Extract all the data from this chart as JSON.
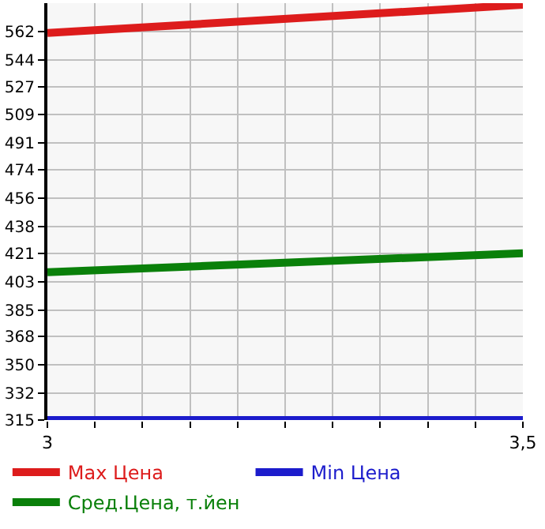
{
  "chart_data": {
    "type": "line",
    "x": [
      3,
      3.5
    ],
    "series": [
      {
        "name": "Max Цена",
        "color": "#dd1c1c",
        "values": [
          561,
          579
        ]
      },
      {
        "name": "Min Цена",
        "color": "#1c1ccc",
        "values": [
          315,
          315
        ]
      },
      {
        "name": "Сред.Цена, т.йен",
        "color": "#0a800a",
        "values": [
          409,
          421
        ]
      }
    ],
    "xlim": [
      3,
      3.5
    ],
    "xticks": [
      3,
      {
        "value": 3.05,
        "label": null
      },
      {
        "value": 3.1,
        "label": null
      },
      {
        "value": 3.15,
        "label": null
      },
      {
        "value": 3.2,
        "label": null
      },
      {
        "value": 3.25,
        "label": null
      },
      {
        "value": 3.3,
        "label": null
      },
      {
        "value": 3.35,
        "label": null
      },
      {
        "value": 3.4,
        "label": null
      },
      {
        "value": 3.45,
        "label": null
      },
      {
        "value": 3.5,
        "label": "3,5"
      }
    ],
    "ylim": [
      315,
      580
    ],
    "yticks": [
      315,
      332,
      350,
      368,
      385,
      403,
      421,
      438,
      456,
      474,
      491,
      509,
      527,
      544,
      562
    ],
    "grid": true,
    "legend": "bottom",
    "marker": "none",
    "line_style": "solid"
  }
}
